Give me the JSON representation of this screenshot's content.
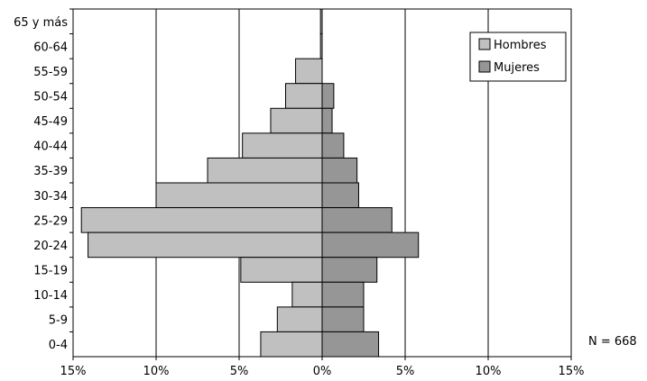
{
  "chart_data": {
    "type": "bar",
    "orientation": "horizontal",
    "subtype": "population-pyramid",
    "categories": [
      "65 y más",
      "60-64",
      "55-59",
      "50-54",
      "45-49",
      "40-44",
      "35-39",
      "30-34",
      "25-29",
      "20-24",
      "15-19",
      "10-14",
      "5-9",
      "0-4"
    ],
    "series": [
      {
        "name": "Hombres",
        "side": "left",
        "color": "#c0c0c0",
        "values": [
          0.1,
          0.1,
          1.6,
          2.2,
          3.1,
          4.8,
          6.9,
          10.0,
          14.5,
          14.1,
          4.9,
          1.8,
          2.7,
          3.7
        ]
      },
      {
        "name": "Mujeres",
        "side": "right",
        "color": "#969696",
        "values": [
          0.0,
          0.0,
          0.0,
          0.7,
          0.6,
          1.3,
          2.1,
          2.2,
          4.2,
          5.8,
          3.3,
          2.5,
          2.5,
          3.4
        ]
      }
    ],
    "xlim": [
      -15,
      15
    ],
    "x_ticks": [
      -15,
      -10,
      -5,
      0,
      5,
      10,
      15
    ],
    "x_tick_labels": [
      "15%",
      "10%",
      "5%",
      "0%",
      "5%",
      "10%",
      "15%"
    ],
    "grid": "vertical",
    "legend": "top-right",
    "annotation": "N =  668"
  }
}
